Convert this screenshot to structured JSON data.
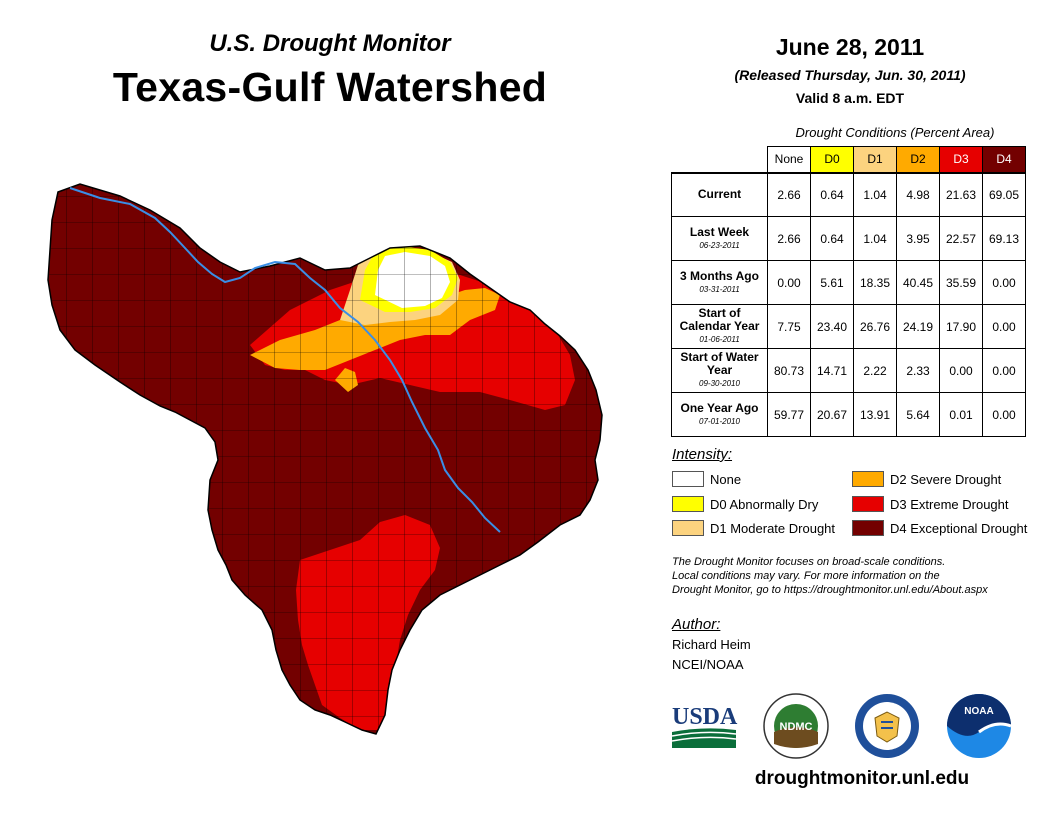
{
  "header": {
    "supertitle": "U.S. Drought Monitor",
    "title": "Texas-Gulf Watershed",
    "date": "June 28, 2011",
    "released": "(Released Thursday, Jun. 30, 2011)",
    "valid": "Valid 8 a.m. EDT"
  },
  "table": {
    "caption": "Drought Conditions (Percent Area)",
    "columns": [
      {
        "label": "None",
        "color": "#ffffff",
        "text_color": "#000000"
      },
      {
        "label": "D0",
        "color": "#ffff00",
        "text_color": "#000000"
      },
      {
        "label": "D1",
        "color": "#fcd37f",
        "text_color": "#000000"
      },
      {
        "label": "D2",
        "color": "#ffaa00",
        "text_color": "#000000"
      },
      {
        "label": "D3",
        "color": "#e60000",
        "text_color": "#ffffff"
      },
      {
        "label": "D4",
        "color": "#730000",
        "text_color": "#ffffff"
      }
    ],
    "rows": [
      {
        "label": "Current",
        "sub": "",
        "values": [
          "2.66",
          "0.64",
          "1.04",
          "4.98",
          "21.63",
          "69.05"
        ]
      },
      {
        "label": "Last Week",
        "sub": "06-23-2011",
        "values": [
          "2.66",
          "0.64",
          "1.04",
          "3.95",
          "22.57",
          "69.13"
        ]
      },
      {
        "label": "3 Months Ago",
        "sub": "03-31-2011",
        "values": [
          "0.00",
          "5.61",
          "18.35",
          "40.45",
          "35.59",
          "0.00"
        ]
      },
      {
        "label": "Start of Calendar Year",
        "sub": "01-06-2011",
        "values": [
          "7.75",
          "23.40",
          "26.76",
          "24.19",
          "17.90",
          "0.00"
        ]
      },
      {
        "label": "Start of Water Year",
        "sub": "09-30-2010",
        "values": [
          "80.73",
          "14.71",
          "2.22",
          "2.33",
          "0.00",
          "0.00"
        ]
      },
      {
        "label": "One Year Ago",
        "sub": "07-01-2010",
        "values": [
          "59.77",
          "20.67",
          "13.91",
          "5.64",
          "0.01",
          "0.00"
        ]
      }
    ]
  },
  "legend": {
    "title": "Intensity:",
    "items": [
      {
        "label": "None",
        "color": "#ffffff"
      },
      {
        "label": "D0 Abnormally Dry",
        "color": "#ffff00"
      },
      {
        "label": "D1 Moderate Drought",
        "color": "#fcd37f"
      },
      {
        "label": "D2 Severe Drought",
        "color": "#ffaa00"
      },
      {
        "label": "D3 Extreme Drought",
        "color": "#e60000"
      },
      {
        "label": "D4 Exceptional Drought",
        "color": "#730000"
      }
    ]
  },
  "note": {
    "line1": "The Drought Monitor focuses on broad-scale conditions.",
    "line2": "Local conditions may vary. For more information on the",
    "line3": "Drought Monitor, go to https://droughtmonitor.unl.edu/About.aspx"
  },
  "author": {
    "title": "Author:",
    "name": "Richard Heim",
    "org": "NCEI/NOAA"
  },
  "logos": {
    "usda": "USDA",
    "ndmc": "NDMC",
    "noaa": "NOAA"
  },
  "footer": {
    "url": "droughtmonitor.unl.edu"
  },
  "colors": {
    "d4": "#730000",
    "d3": "#e60000",
    "d2": "#ffaa00",
    "d1": "#fcd37f",
    "d0": "#ffff00",
    "river": "#3a8ee6"
  }
}
